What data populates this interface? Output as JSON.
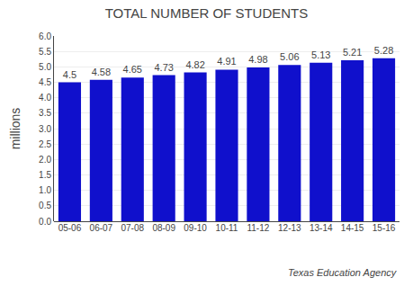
{
  "chart_data": {
    "type": "bar",
    "title": "TOTAL NUMBER OF STUDENTS",
    "categories": [
      "05-06",
      "06-07",
      "07-08",
      "08-09",
      "09-10",
      "10-11",
      "11-12",
      "12-13",
      "13-14",
      "14-15",
      "15-16"
    ],
    "values": [
      4.5,
      4.58,
      4.65,
      4.73,
      4.82,
      4.91,
      4.98,
      5.06,
      5.13,
      5.21,
      5.28
    ],
    "color": "#1010cc",
    "ylabel": "millions",
    "ylim": [
      0.0,
      6.0
    ],
    "yticks": [
      {
        "value": 0.0,
        "label": "0.0"
      },
      0.5,
      {
        "value": 1.0,
        "label": "1.0"
      },
      1.5,
      {
        "value": 2.0,
        "label": "2.0"
      },
      2.5,
      {
        "value": 3.0,
        "label": "3.0"
      },
      3.5,
      {
        "value": 4.0,
        "label": "4.0"
      },
      4.5,
      {
        "value": 5.0,
        "label": "5.0"
      },
      5.5,
      {
        "value": 6.0,
        "label": "6.0"
      }
    ],
    "grid": true,
    "data_labels": true,
    "annotations": [
      "Texas Education Agency"
    ]
  }
}
